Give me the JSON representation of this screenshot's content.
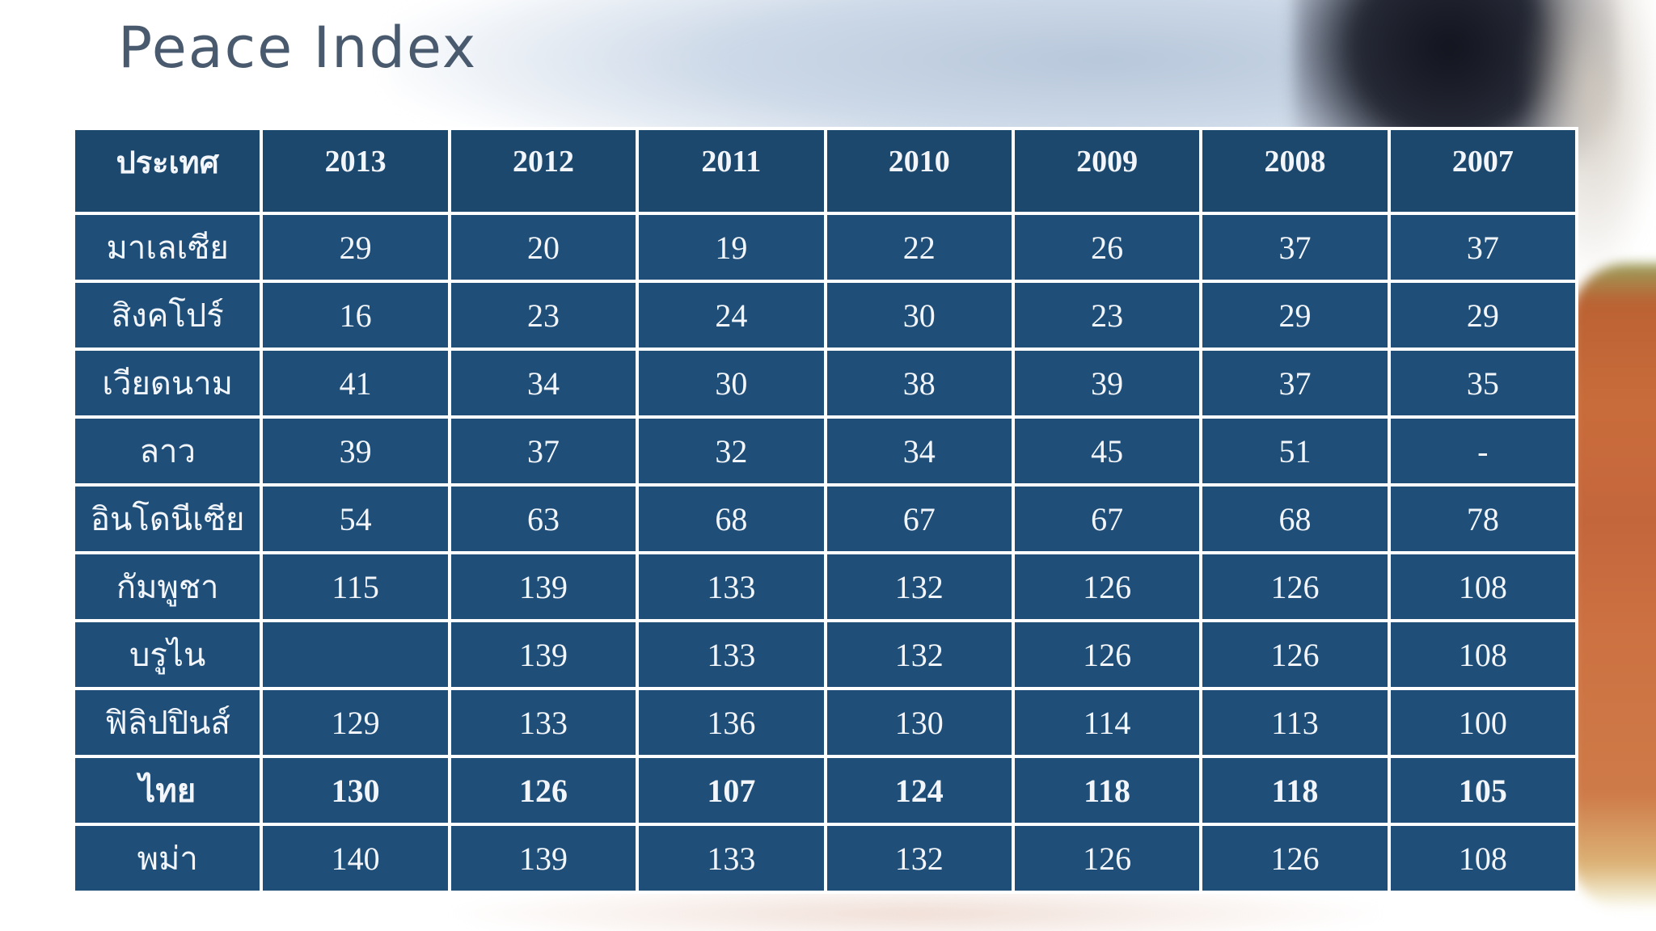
{
  "slide": {
    "title": "Peace Index"
  },
  "table": {
    "columns": [
      "ประเทศ",
      "2013",
      "2012",
      "2011",
      "2010",
      "2009",
      "2008",
      "2007"
    ],
    "rows": [
      {
        "country": "มาเลเซีย",
        "bold": false,
        "values": [
          "29",
          "20",
          "19",
          "22",
          "26",
          "37",
          "37"
        ]
      },
      {
        "country": "สิงคโปร์",
        "bold": false,
        "values": [
          "16",
          "23",
          "24",
          "30",
          "23",
          "29",
          "29"
        ]
      },
      {
        "country": "เวียดนาม",
        "bold": false,
        "values": [
          "41",
          "34",
          "30",
          "38",
          "39",
          "37",
          "35"
        ]
      },
      {
        "country": "ลาว",
        "bold": false,
        "values": [
          "39",
          "37",
          "32",
          "34",
          "45",
          "51",
          "-"
        ]
      },
      {
        "country": "อินโดนีเซีย",
        "bold": false,
        "values": [
          "54",
          "63",
          "68",
          "67",
          "67",
          "68",
          "78"
        ]
      },
      {
        "country": "กัมพูชา",
        "bold": false,
        "values": [
          "115",
          "139",
          "133",
          "132",
          "126",
          "126",
          "108"
        ]
      },
      {
        "country": "บรูไน",
        "bold": false,
        "values": [
          "",
          "139",
          "133",
          "132",
          "126",
          "126",
          "108"
        ]
      },
      {
        "country": "ฟิลิปปินส์",
        "bold": false,
        "values": [
          "129",
          "133",
          "136",
          "130",
          "114",
          "113",
          "100"
        ]
      },
      {
        "country": "ไทย",
        "bold": true,
        "values": [
          "130",
          "126",
          "107",
          "124",
          "118",
          "118",
          "105"
        ]
      },
      {
        "country": "พม่า",
        "bold": false,
        "values": [
          "140",
          "139",
          "133",
          "132",
          "126",
          "126",
          "108"
        ]
      }
    ]
  },
  "colors": {
    "cell_blue": "#1f4e78",
    "header_blue": "#1d486d",
    "grid_white": "#ffffff",
    "title_text": "#4a5a6e",
    "bg_orange_blob": "#cd7242",
    "bg_dark_blob": "#1a1d28",
    "bg_blue_band": "#c3d0e0"
  }
}
